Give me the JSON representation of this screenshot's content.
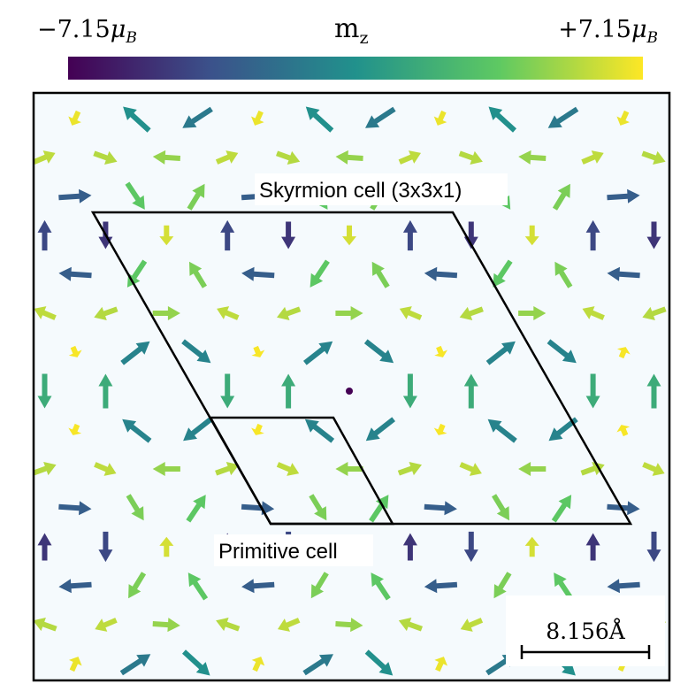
{
  "colorbar": {
    "title_main": "m",
    "title_sub": "z",
    "min_label": "−7.15",
    "max_label": "+7.15",
    "unit_main": "μ",
    "unit_sub": "B",
    "min_value": -7.15,
    "max_value": 7.15,
    "colormap": "viridis",
    "stops": [
      "#440154",
      "#3b528b",
      "#21918c",
      "#5ec962",
      "#fde725"
    ]
  },
  "labels": {
    "skyrmion_cell": "Skyrmion cell (3x3x1)",
    "primitive_cell": "Primitive cell"
  },
  "scale_bar": {
    "label": "8.156Å"
  },
  "panel": {
    "background": "#f5fafd",
    "border": "#000000"
  },
  "skyrmion_core_color": "#440154"
}
